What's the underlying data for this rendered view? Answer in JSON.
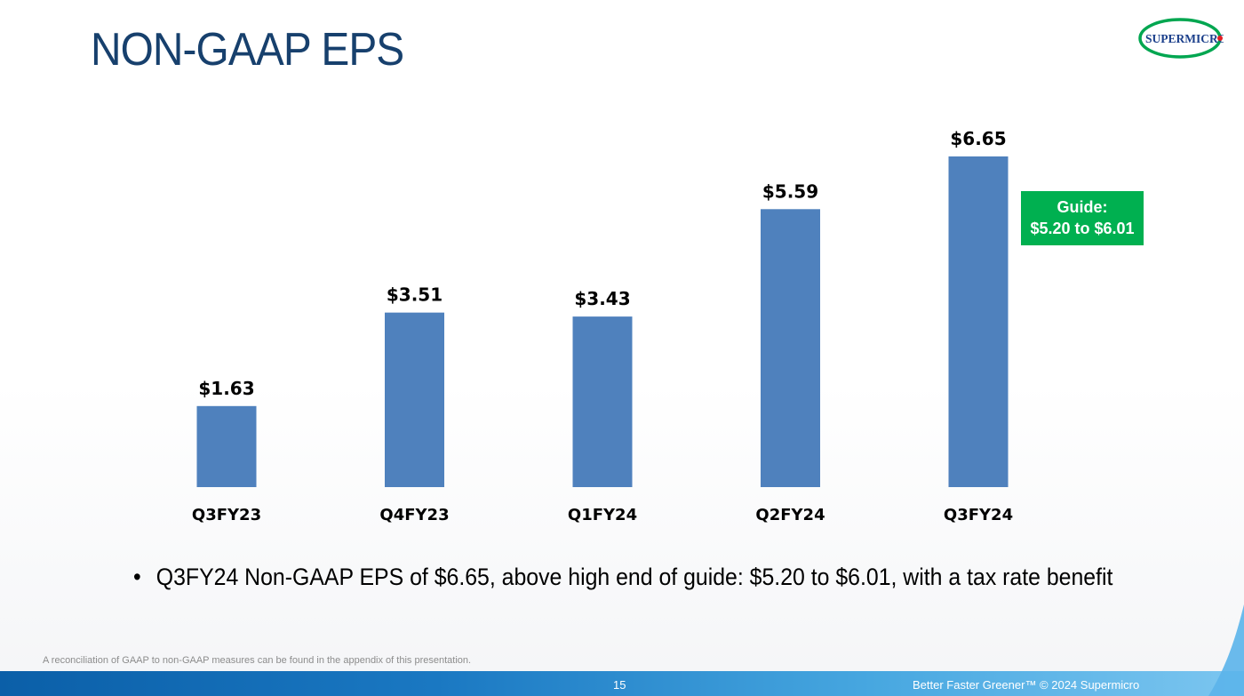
{
  "slide": {
    "title": "NON-GAAP EPS",
    "logo_text": "SUPERMICRO",
    "guide_line1": "Guide:",
    "guide_line2": "$5.20 to $6.01",
    "bullet_symbol": "•",
    "bullet_text": "Q3FY24 Non-GAAP EPS of $6.65, above high end of guide: $5.20 to $6.01, with a tax rate benefit",
    "footnote": "A reconciliation of GAAP to non-GAAP measures can be found in the appendix of this presentation.",
    "page_number": "15",
    "footer_tagline": "Better Faster Greener™  © 2024 Supermicro"
  },
  "colors": {
    "title": "#17406d",
    "bar": "#4f81bd",
    "guide_box": "#00b050",
    "logo_green": "#00a650",
    "logo_blue": "#1b3f8b",
    "logo_red": "#e31e24"
  },
  "chart_data": {
    "type": "bar",
    "title": "",
    "xlabel": "",
    "ylabel": "",
    "categories": [
      "Q3FY23",
      "Q4FY23",
      "Q1FY24",
      "Q2FY24",
      "Q3FY24"
    ],
    "values": [
      1.63,
      3.51,
      3.43,
      5.59,
      6.65
    ],
    "data_labels": [
      "$1.63",
      "$3.51",
      "$3.43",
      "$5.59",
      "$6.65"
    ],
    "ylim": [
      0,
      6.65
    ],
    "grid": false,
    "legend": "none"
  }
}
